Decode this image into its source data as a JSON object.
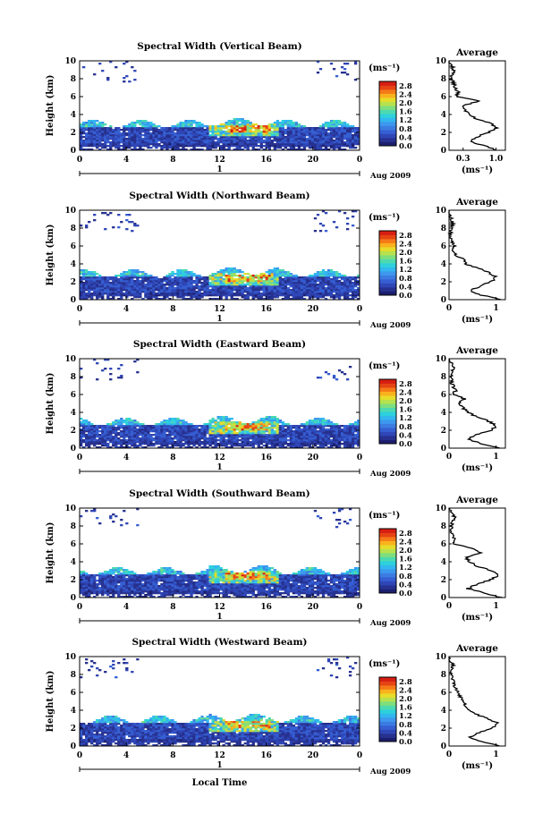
{
  "figure": {
    "bottom_xlabel": "Local Time",
    "date_label": "Aug 2009",
    "day_label": "1"
  },
  "colors": {
    "scale": [
      "#1c1f6e",
      "#27318f",
      "#2f46b6",
      "#355fd2",
      "#3c7ce2",
      "#3d98ee",
      "#32b7ef",
      "#2ed0dc",
      "#4dd9b0",
      "#7ede7d",
      "#b7e14e",
      "#e6dc2a",
      "#f9b21d",
      "#f57a18",
      "#e64414",
      "#d61e13"
    ]
  },
  "chart_data": [
    {
      "type": "heatmap",
      "title": "Spectral Width (Vertical Beam)",
      "ylabel": "Height (km)",
      "xlim": [
        0,
        24
      ],
      "ylim": [
        0,
        10
      ],
      "xticks": [
        "0",
        "4",
        "8",
        "12",
        "16",
        "20",
        "0"
      ],
      "yticks": [
        "0",
        "2",
        "4",
        "6",
        "8",
        "10"
      ],
      "colorbar": {
        "unit": "(ms⁻¹)",
        "ticks": [
          "0.0",
          "0.4",
          "0.8",
          "1.2",
          "1.6",
          "2.0",
          "2.4",
          "2.8"
        ],
        "range": [
          0,
          3.0
        ]
      },
      "profile": {
        "title": "Average",
        "xlabel": "(ms⁻¹)",
        "xticks": [
          "0.3",
          "1.0"
        ],
        "xlim": [
          0,
          1.2
        ],
        "heights": [
          0,
          0.5,
          1,
          1.5,
          2,
          2.5,
          3,
          3.5,
          4,
          4.5,
          5,
          5.5,
          6,
          6.5,
          7,
          7.5,
          8,
          8.5,
          9,
          9.5,
          10
        ],
        "values": [
          1.0,
          0.75,
          0.45,
          0.6,
          0.85,
          1.0,
          0.9,
          0.6,
          0.4,
          0.35,
          0.3,
          0.65,
          0.15,
          0.2,
          0.12,
          0.1,
          0.05,
          0.08,
          0.1,
          0.05,
          0.0
        ]
      }
    },
    {
      "type": "heatmap",
      "title": "Spectral Width (Northward Beam)",
      "ylabel": "Height (km)",
      "xlim": [
        0,
        24
      ],
      "ylim": [
        0,
        10
      ],
      "xticks": [
        "0",
        "4",
        "8",
        "12",
        "16",
        "20",
        "0"
      ],
      "yticks": [
        "0",
        "2",
        "4",
        "6",
        "8",
        "10"
      ],
      "colorbar": {
        "unit": "(ms⁻¹)",
        "ticks": [
          "0.0",
          "0.4",
          "0.8",
          "1.2",
          "1.6",
          "2.0",
          "2.4",
          "2.8"
        ],
        "range": [
          0,
          3.0
        ]
      },
      "profile": {
        "title": "Average",
        "xlabel": "(ms⁻¹)",
        "xticks": [
          "0",
          "1"
        ],
        "xlim": [
          0,
          1.2
        ],
        "heights": [
          0,
          0.5,
          1,
          1.5,
          2,
          2.5,
          3,
          3.5,
          4,
          4.5,
          5,
          5.5,
          6,
          6.5,
          7,
          7.5,
          8,
          8.5,
          9,
          9.5,
          10
        ],
        "values": [
          1.1,
          0.7,
          0.45,
          0.65,
          0.9,
          1.0,
          0.85,
          0.65,
          0.35,
          0.3,
          0.15,
          0.1,
          0.1,
          0.05,
          0.05,
          0.03,
          0.05,
          0.08,
          0.05,
          0.0,
          0.0
        ]
      }
    },
    {
      "type": "heatmap",
      "title": "Spectral Width (Eastward Beam)",
      "ylabel": "Height (km)",
      "xlim": [
        0,
        24
      ],
      "ylim": [
        0,
        10
      ],
      "xticks": [
        "0",
        "4",
        "8",
        "12",
        "16",
        "20",
        "0"
      ],
      "yticks": [
        "0",
        "2",
        "4",
        "6",
        "8",
        "10"
      ],
      "colorbar": {
        "unit": "(ms⁻¹)",
        "ticks": [
          "0.0",
          "0.4",
          "0.8",
          "1.2",
          "1.6",
          "2.0",
          "2.4",
          "2.8"
        ],
        "range": [
          0,
          3.0
        ]
      },
      "profile": {
        "title": "Average",
        "xlabel": "(ms⁻¹)",
        "xticks": [
          "0",
          "1"
        ],
        "xlim": [
          0,
          1.2
        ],
        "heights": [
          0,
          0.5,
          1,
          1.5,
          2,
          2.5,
          3,
          3.5,
          4,
          4.5,
          5,
          5.5,
          6,
          6.5,
          7,
          7.5,
          8,
          8.5,
          9,
          9.5,
          10
        ],
        "values": [
          1.05,
          0.7,
          0.4,
          0.6,
          0.9,
          1.0,
          0.85,
          0.6,
          0.4,
          0.3,
          0.2,
          0.35,
          0.1,
          0.15,
          0.08,
          0.05,
          0.04,
          0.06,
          0.1,
          0.05,
          0.0
        ]
      }
    },
    {
      "type": "heatmap",
      "title": "Spectral Width (Southward Beam)",
      "ylabel": "Height (km)",
      "xlim": [
        0,
        24
      ],
      "ylim": [
        0,
        10
      ],
      "xticks": [
        "0",
        "4",
        "8",
        "12",
        "16",
        "20",
        "0"
      ],
      "yticks": [
        "0",
        "2",
        "4",
        "6",
        "8",
        "10"
      ],
      "colorbar": {
        "unit": "(ms⁻¹)",
        "ticks": [
          "0.0",
          "0.4",
          "0.8",
          "1.2",
          "1.6",
          "2.0",
          "2.4",
          "2.8"
        ],
        "range": [
          0,
          3.0
        ]
      },
      "profile": {
        "title": "Average",
        "xlabel": "(ms⁻¹)",
        "xticks": [
          "0",
          "1"
        ],
        "xlim": [
          0,
          1.2
        ],
        "heights": [
          0,
          0.5,
          1,
          1.5,
          2,
          2.5,
          3,
          3.5,
          4,
          4.5,
          5,
          5.5,
          6,
          6.5,
          7,
          7.5,
          8,
          8.5,
          9,
          9.5,
          10
        ],
        "values": [
          1.1,
          0.75,
          0.4,
          0.6,
          0.9,
          1.05,
          0.9,
          0.6,
          0.45,
          0.35,
          0.65,
          0.5,
          0.1,
          0.12,
          0.06,
          0.05,
          0.05,
          0.08,
          0.12,
          0.05,
          0.0
        ]
      }
    },
    {
      "type": "heatmap",
      "title": "Spectral Width (Westward Beam)",
      "ylabel": "Height (km)",
      "xlim": [
        0,
        24
      ],
      "ylim": [
        0,
        10
      ],
      "xticks": [
        "0",
        "4",
        "8",
        "12",
        "16",
        "20",
        "0"
      ],
      "yticks": [
        "0",
        "2",
        "4",
        "6",
        "8",
        "10"
      ],
      "colorbar": {
        "unit": "(ms⁻¹)",
        "ticks": [
          "0.0",
          "0.4",
          "0.8",
          "1.2",
          "1.6",
          "2.0",
          "2.4",
          "2.8"
        ],
        "range": [
          0,
          3.0
        ]
      },
      "profile": {
        "title": "Average",
        "xlabel": "(ms⁻¹)",
        "xticks": [
          "0",
          "1"
        ],
        "xlim": [
          0,
          1.2
        ],
        "heights": [
          0,
          0.5,
          1,
          1.5,
          2,
          2.5,
          3,
          3.5,
          4,
          4.5,
          5,
          5.5,
          6,
          6.5,
          7,
          7.5,
          8,
          8.5,
          9,
          9.5,
          10
        ],
        "values": [
          1.1,
          0.7,
          0.45,
          0.65,
          0.9,
          1.05,
          0.85,
          0.6,
          0.45,
          0.35,
          0.3,
          0.25,
          0.2,
          0.15,
          0.1,
          0.08,
          0.06,
          0.05,
          0.08,
          0.04,
          0.0
        ]
      }
    }
  ]
}
